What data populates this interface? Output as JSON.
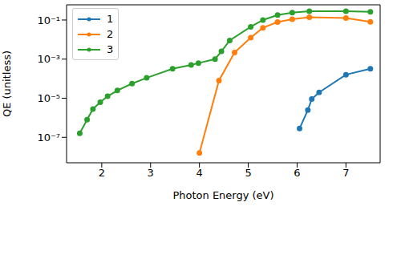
{
  "chart_data": {
    "type": "line",
    "xlabel": "Photon Energy (eV)",
    "ylabel": "QE (unitless)",
    "log": "y",
    "grid": false,
    "legend": "upper left",
    "marker": "o",
    "xlim": [
      1.28,
      7.7
    ],
    "ylim": [
      5e-09,
      0.6
    ],
    "xticks": [
      2,
      3,
      4,
      5,
      6,
      7
    ],
    "yticks": [
      {
        "value": 1e-07,
        "label": "10⁻⁷"
      },
      {
        "value": 1e-05,
        "label": "10⁻⁵"
      },
      {
        "value": 0.001,
        "label": "10⁻³"
      },
      {
        "value": 0.1,
        "label": "10⁻¹"
      }
    ],
    "series": [
      {
        "name": "1",
        "color": "#1f77b4",
        "x": [
          6.05,
          6.22,
          6.3,
          6.45,
          7.0,
          7.5
        ],
        "values": [
          2.8e-07,
          2.5e-06,
          9e-06,
          2e-05,
          0.00016,
          0.00032
        ]
      },
      {
        "name": "2",
        "color": "#ff7f0e",
        "x": [
          4.0,
          4.4,
          4.72,
          5.05,
          5.3,
          5.6,
          5.9,
          6.25,
          7.0,
          7.5
        ],
        "values": [
          1.6e-08,
          8e-05,
          0.0022,
          0.0126,
          0.04,
          0.079,
          0.11,
          0.14,
          0.126,
          0.08
        ]
      },
      {
        "name": "3",
        "color": "#2ca02c",
        "x": [
          1.55,
          1.7,
          1.82,
          1.97,
          2.12,
          2.32,
          2.62,
          2.92,
          3.45,
          3.83,
          3.98,
          4.32,
          4.45,
          4.62,
          5.05,
          5.3,
          5.6,
          5.9,
          6.25,
          7.0,
          7.5
        ],
        "values": [
          1.6e-07,
          8e-07,
          2.8e-06,
          6.3e-06,
          1.26e-05,
          2.5e-05,
          5.6e-05,
          0.00011,
          0.00032,
          0.0005,
          0.00063,
          0.001,
          0.0025,
          0.009,
          0.045,
          0.1,
          0.18,
          0.24,
          0.28,
          0.28,
          0.26
        ]
      }
    ]
  }
}
